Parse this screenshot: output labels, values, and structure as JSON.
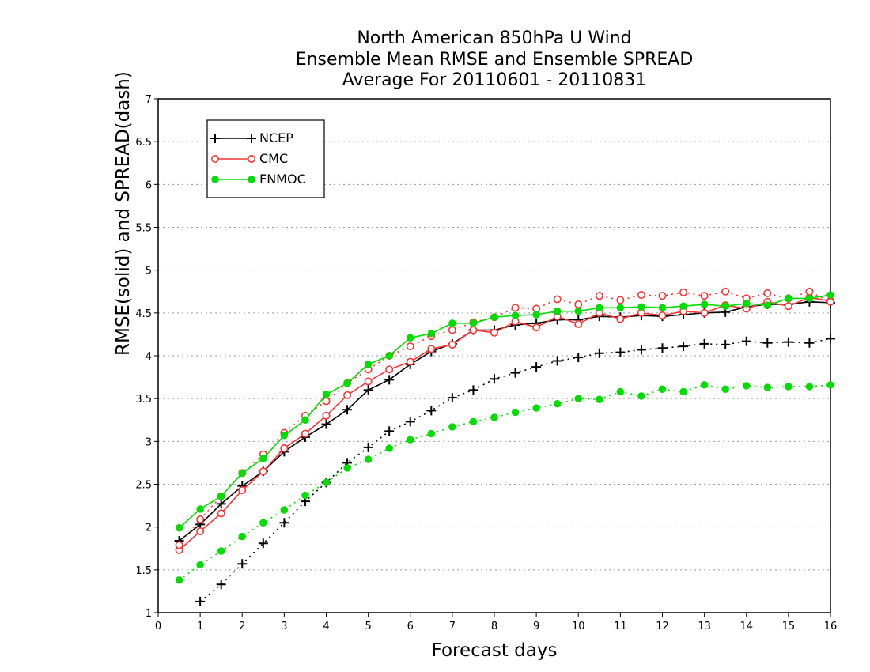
{
  "chart_data": {
    "type": "line",
    "title_lines": [
      "North American 850hPa U Wind",
      "Ensemble Mean RMSE and Ensemble SPREAD",
      "Average For 20110601 - 20110831"
    ],
    "xlabel": "Forecast days",
    "ylabel": "RMSE(solid) and SPREAD(dash)",
    "xlim": [
      0,
      16
    ],
    "ylim": [
      1,
      7
    ],
    "xticks": [
      "0",
      "1",
      "2",
      "3",
      "4",
      "5",
      "6",
      "7",
      "8",
      "9",
      "10",
      "11",
      "12",
      "13",
      "14",
      "15",
      "16"
    ],
    "yticks": [
      "1",
      "1.5",
      "2",
      "2.5",
      "3",
      "3.5",
      "4",
      "4.5",
      "5",
      "5.5",
      "6",
      "6.5",
      "7"
    ],
    "grid": "dotted-horizontal",
    "legend_position": "top-left",
    "series": [
      {
        "name": "NCEP",
        "color": "#000000",
        "marker": "plus",
        "style": "solid",
        "x": [
          0.5,
          1,
          1.5,
          2,
          2.5,
          3,
          3.5,
          4,
          4.5,
          5,
          5.5,
          6,
          6.5,
          7,
          7.5,
          8,
          8.5,
          9,
          9.5,
          10,
          10.5,
          11,
          11.5,
          12,
          12.5,
          13,
          13.5,
          14,
          14.5,
          15,
          15.5,
          16
        ],
        "y": [
          1.84,
          2.03,
          2.27,
          2.48,
          2.65,
          2.88,
          3.05,
          3.2,
          3.37,
          3.6,
          3.72,
          3.9,
          4.05,
          4.14,
          4.3,
          4.3,
          4.36,
          4.38,
          4.42,
          4.42,
          4.46,
          4.45,
          4.47,
          4.46,
          4.48,
          4.5,
          4.51,
          4.57,
          4.6,
          4.6,
          4.63,
          4.62
        ]
      },
      {
        "name": "",
        "color": "#000000",
        "marker": "plus",
        "style": "dotted",
        "x": [
          1,
          1.5,
          2,
          2.5,
          3,
          3.5,
          4,
          4.5,
          5,
          5.5,
          6,
          6.5,
          7,
          7.5,
          8,
          8.5,
          9,
          9.5,
          10,
          10.5,
          11,
          11.5,
          12,
          12.5,
          13,
          13.5,
          14,
          14.5,
          15,
          15.5,
          16
        ],
        "y": [
          1.13,
          1.33,
          1.57,
          1.81,
          2.05,
          2.3,
          2.52,
          2.75,
          2.93,
          3.12,
          3.23,
          3.36,
          3.51,
          3.6,
          3.73,
          3.8,
          3.87,
          3.94,
          3.98,
          4.03,
          4.04,
          4.07,
          4.09,
          4.11,
          4.14,
          4.13,
          4.17,
          4.15,
          4.16,
          4.15,
          4.2
        ]
      },
      {
        "name": "CMC",
        "color": "#ff3333",
        "marker": "open-circle",
        "style": "solid",
        "x": [
          0.5,
          1,
          1.5,
          2,
          2.5,
          3,
          3.5,
          4,
          4.5,
          5,
          5.5,
          6,
          6.5,
          7,
          7.5,
          8,
          8.5,
          9,
          9.5,
          10,
          10.5,
          11,
          11.5,
          12,
          12.5,
          13,
          13.5,
          14,
          14.5,
          15,
          15.5,
          16
        ],
        "y": [
          1.73,
          1.95,
          2.16,
          2.43,
          2.65,
          2.92,
          3.09,
          3.3,
          3.54,
          3.7,
          3.84,
          3.93,
          4.08,
          4.13,
          4.3,
          4.27,
          4.4,
          4.33,
          4.46,
          4.37,
          4.5,
          4.43,
          4.5,
          4.47,
          4.52,
          4.5,
          4.59,
          4.55,
          4.63,
          4.58,
          4.68,
          4.64
        ]
      },
      {
        "name": "",
        "color": "#ff3333",
        "marker": "open-circle",
        "style": "dotted",
        "x": [
          0.5,
          1,
          1.5,
          2,
          2.5,
          3,
          3.5,
          4,
          4.5,
          5,
          5.5,
          6,
          6.5,
          7,
          7.5,
          8,
          8.5,
          9,
          9.5,
          10,
          10.5,
          11,
          11.5,
          12,
          12.5,
          13,
          13.5,
          14,
          14.5,
          15,
          15.5,
          16
        ],
        "y": [
          1.79,
          2.09,
          2.36,
          2.63,
          2.85,
          3.1,
          3.3,
          3.47,
          3.68,
          3.84,
          4.0,
          4.11,
          4.23,
          4.3,
          4.39,
          4.45,
          4.56,
          4.55,
          4.66,
          4.6,
          4.7,
          4.65,
          4.71,
          4.7,
          4.74,
          4.7,
          4.75,
          4.67,
          4.73,
          4.67,
          4.75,
          4.63
        ]
      },
      {
        "name": "FNMOC",
        "color": "#00dd00",
        "marker": "filled-circle",
        "style": "solid",
        "x": [
          0.5,
          1,
          1.5,
          2,
          2.5,
          3,
          3.5,
          4,
          4.5,
          5,
          5.5,
          6,
          6.5,
          7,
          7.5,
          8,
          8.5,
          9,
          9.5,
          10,
          10.5,
          11,
          11.5,
          12,
          12.5,
          13,
          13.5,
          14,
          14.5,
          15,
          15.5,
          16
        ],
        "y": [
          1.99,
          2.21,
          2.36,
          2.63,
          2.8,
          3.07,
          3.25,
          3.55,
          3.68,
          3.9,
          4.0,
          4.21,
          4.26,
          4.38,
          4.38,
          4.45,
          4.47,
          4.48,
          4.52,
          4.52,
          4.56,
          4.56,
          4.57,
          4.56,
          4.58,
          4.6,
          4.58,
          4.61,
          4.59,
          4.67,
          4.67,
          4.71
        ]
      },
      {
        "name": "",
        "color": "#00dd00",
        "marker": "filled-circle",
        "style": "dotted",
        "x": [
          0.5,
          1,
          1.5,
          2,
          2.5,
          3,
          3.5,
          4,
          4.5,
          5,
          5.5,
          6,
          6.5,
          7,
          7.5,
          8,
          8.5,
          9,
          9.5,
          10,
          10.5,
          11,
          11.5,
          12,
          12.5,
          13,
          13.5,
          14,
          14.5,
          15,
          15.5,
          16
        ],
        "y": [
          1.38,
          1.56,
          1.72,
          1.89,
          2.05,
          2.2,
          2.37,
          2.52,
          2.69,
          2.79,
          2.92,
          3.02,
          3.09,
          3.17,
          3.23,
          3.28,
          3.34,
          3.39,
          3.44,
          3.5,
          3.49,
          3.58,
          3.53,
          3.61,
          3.58,
          3.66,
          3.61,
          3.65,
          3.63,
          3.64,
          3.64,
          3.66
        ]
      }
    ]
  }
}
